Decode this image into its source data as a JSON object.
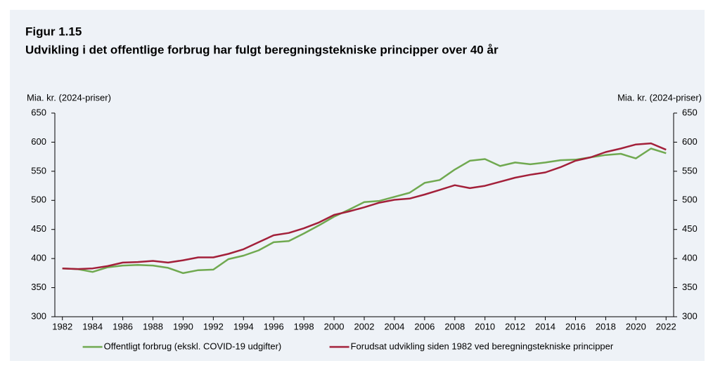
{
  "chart_data": {
    "type": "line",
    "title": "Figur 1.15",
    "subtitle": "Udvikling i det offentlige forbrug har fulgt beregningstekniske principper over 40 år",
    "ylabel": "Mia. kr. (2024-priser)",
    "y2label": "Mia. kr. (2024-priser)",
    "x": [
      1982,
      1983,
      1984,
      1985,
      1986,
      1987,
      1988,
      1989,
      1990,
      1991,
      1992,
      1993,
      1994,
      1995,
      1996,
      1997,
      1998,
      1999,
      2000,
      2001,
      2002,
      2003,
      2004,
      2005,
      2006,
      2007,
      2008,
      2009,
      2010,
      2011,
      2012,
      2013,
      2014,
      2015,
      2016,
      2017,
      2018,
      2019,
      2020,
      2021,
      2022
    ],
    "xlim": [
      1981.5,
      2022.5
    ],
    "xticks": [
      1982,
      1984,
      1986,
      1988,
      1990,
      1992,
      1994,
      1996,
      1998,
      2000,
      2002,
      2004,
      2006,
      2008,
      2010,
      2012,
      2014,
      2016,
      2018,
      2020,
      2022
    ],
    "ylim": [
      300,
      650
    ],
    "yticks": [
      300,
      350,
      400,
      450,
      500,
      550,
      600,
      650
    ],
    "y2lim": [
      300,
      650
    ],
    "y2ticks": [
      300,
      350,
      400,
      450,
      500,
      550,
      600,
      650
    ],
    "legend": "bottom",
    "series": [
      {
        "name": "Offentligt forbrug (ekskl. COVID-19 udgifter)",
        "color": "#70a950",
        "values": [
          383,
          382,
          377,
          385,
          388,
          389,
          388,
          384,
          375,
          380,
          381,
          399,
          405,
          414,
          428,
          430,
          443,
          457,
          472,
          484,
          497,
          499,
          506,
          513,
          530,
          535,
          553,
          568,
          571,
          559,
          565,
          562,
          565,
          569,
          570,
          574,
          578,
          580,
          572,
          589,
          581
        ]
      },
      {
        "name": "Forudsat udvikling siden 1982 ved beregningstekniske principper",
        "color": "#a3203a",
        "values": [
          383,
          382,
          383,
          387,
          393,
          394,
          396,
          393,
          397,
          402,
          402,
          408,
          416,
          428,
          440,
          444,
          452,
          462,
          475,
          481,
          488,
          496,
          501,
          503,
          510,
          518,
          526,
          521,
          525,
          532,
          539,
          544,
          548,
          557,
          568,
          574,
          583,
          589,
          596,
          598,
          587
        ]
      }
    ]
  }
}
